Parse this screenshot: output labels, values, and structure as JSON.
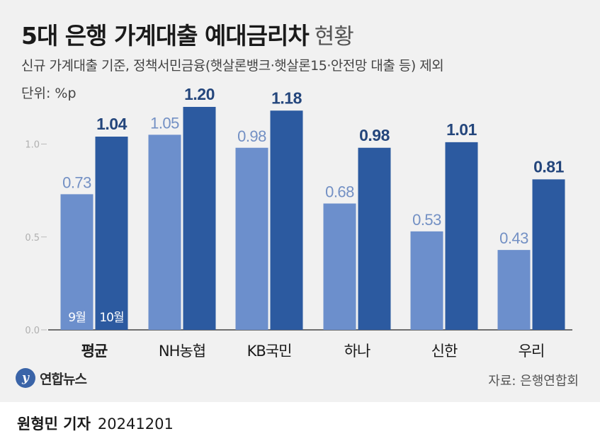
{
  "title": "5대 은행 가계대출 예대금리차",
  "title_suffix": "현황",
  "subtitle": "신규 가계대출 기준, 정책서민금융(햇살론뱅크·햇살론15·안전망 대출 등) 제외",
  "unit": "단위: %p",
  "source": "자료: 은행연합회",
  "logo_text": "연합뉴스",
  "byline": {
    "name": "원형민 기자",
    "date": "20241201"
  },
  "colors": {
    "sep": "#6c8fcc",
    "oct": "#2c5aa0",
    "oct_label": "#24467c",
    "sep_label": "#ffffff",
    "sep_label_out": "#7390c4"
  },
  "chart_data": {
    "type": "bar",
    "categories": [
      "평균",
      "NH농협",
      "KB국민",
      "하나",
      "신한",
      "우리"
    ],
    "series": [
      {
        "name": "9월",
        "values": [
          0.73,
          1.05,
          0.98,
          0.68,
          0.53,
          0.43
        ],
        "labels": [
          "0.73",
          "1.05",
          "0.98",
          "0.68",
          "0.53",
          "0.43"
        ]
      },
      {
        "name": "10월",
        "values": [
          1.04,
          1.2,
          1.18,
          0.98,
          1.01,
          0.81
        ],
        "labels": [
          "1.04",
          "1.20",
          "1.18",
          "0.98",
          "1.01",
          "0.81"
        ]
      }
    ],
    "ylim": [
      0,
      1.3
    ],
    "yticks": [
      "0.0",
      "0.5",
      "1.0"
    ],
    "ytick_values": [
      0.0,
      0.5,
      1.0
    ],
    "bold_category": "평균",
    "series_labels_in_first_group": [
      "9월",
      "10월"
    ]
  }
}
